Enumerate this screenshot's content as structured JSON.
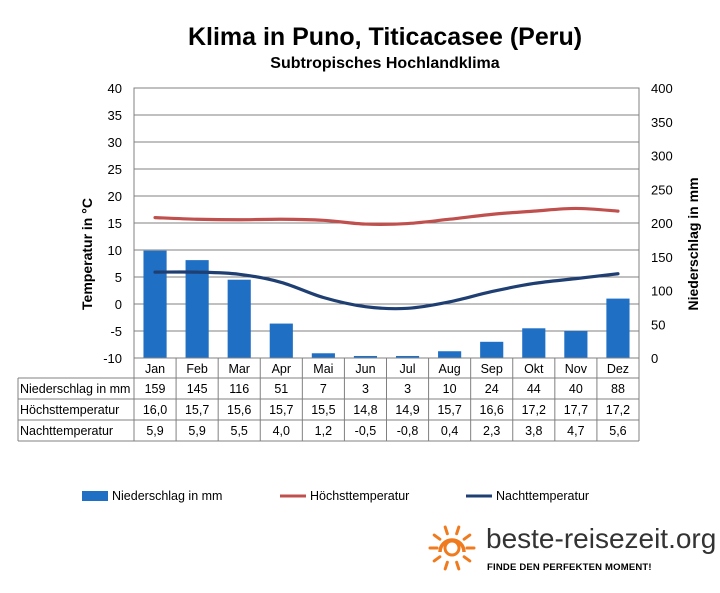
{
  "chart_data": {
    "type": "bar+line",
    "title": "Klima in Puno, Titicacasee (Peru)",
    "subtitle": "Subtropisches Hochlandklima",
    "categories": [
      "Jan",
      "Feb",
      "Mar",
      "Apr",
      "Mai",
      "Jun",
      "Jul",
      "Aug",
      "Sep",
      "Okt",
      "Nov",
      "Dez"
    ],
    "ylabel_left": "Temperatur in °C",
    "ylabel_right": "Niederschlag in mm",
    "ylim_left": [
      -10,
      40
    ],
    "ylim_right": [
      0,
      400
    ],
    "yticks_left": [
      "40",
      "35",
      "30",
      "25",
      "20",
      "15",
      "10",
      "5",
      "0",
      "-5",
      "-10"
    ],
    "yticks_right": [
      "400",
      "350",
      "300",
      "250",
      "200",
      "150",
      "100",
      "50",
      "0"
    ],
    "grid": "horizontal",
    "legend_position": "bottom",
    "series": [
      {
        "name": "Niederschlag in mm",
        "kind": "bar",
        "axis": "right",
        "color": "#1f6fc4",
        "values": [
          159,
          145,
          116,
          51,
          7,
          3,
          3,
          10,
          24,
          44,
          40,
          88
        ],
        "labels": [
          "159",
          "145",
          "116",
          "51",
          "7",
          "3",
          "3",
          "10",
          "24",
          "44",
          "40",
          "88"
        ]
      },
      {
        "name": "Höchsttemperatur",
        "kind": "line",
        "axis": "left",
        "color": "#c0504d",
        "values": [
          16.0,
          15.7,
          15.6,
          15.7,
          15.5,
          14.8,
          14.9,
          15.7,
          16.6,
          17.2,
          17.7,
          17.2
        ],
        "labels": [
          "16,0",
          "15,7",
          "15,6",
          "15,7",
          "15,5",
          "14,8",
          "14,9",
          "15,7",
          "16,6",
          "17,2",
          "17,7",
          "17,2"
        ]
      },
      {
        "name": "Nachttemperatur",
        "kind": "line",
        "axis": "left",
        "color": "#1f3f73",
        "values": [
          5.9,
          5.9,
          5.5,
          4.0,
          1.2,
          -0.5,
          -0.8,
          0.4,
          2.3,
          3.8,
          4.7,
          5.6
        ],
        "labels": [
          "5,9",
          "5,9",
          "5,5",
          "4,0",
          "1,2",
          "-0,5",
          "-0,8",
          "0,4",
          "2,3",
          "3,8",
          "4,7",
          "5,6"
        ]
      }
    ]
  },
  "branding": {
    "name": "beste-reisezeit.org",
    "tagline": "FINDE DEN PERFEKTEN MOMENT!",
    "sun_color": "#f07a1e"
  }
}
